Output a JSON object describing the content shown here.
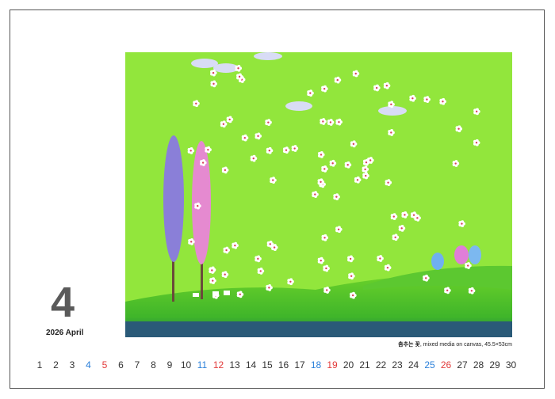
{
  "month": {
    "number": "4",
    "label": "2026 April"
  },
  "artwork": {
    "title": "춤추는 꽃",
    "details": ", mixed media on canvas, 45.5×53cm"
  },
  "days": [
    {
      "d": "1",
      "t": "w"
    },
    {
      "d": "2",
      "t": "w"
    },
    {
      "d": "3",
      "t": "w"
    },
    {
      "d": "4",
      "t": "sat"
    },
    {
      "d": "5",
      "t": "sun"
    },
    {
      "d": "6",
      "t": "w"
    },
    {
      "d": "7",
      "t": "w"
    },
    {
      "d": "8",
      "t": "w"
    },
    {
      "d": "9",
      "t": "w"
    },
    {
      "d": "10",
      "t": "w"
    },
    {
      "d": "11",
      "t": "sat"
    },
    {
      "d": "12",
      "t": "sun"
    },
    {
      "d": "13",
      "t": "w"
    },
    {
      "d": "14",
      "t": "w"
    },
    {
      "d": "15",
      "t": "w"
    },
    {
      "d": "16",
      "t": "w"
    },
    {
      "d": "17",
      "t": "w"
    },
    {
      "d": "18",
      "t": "sat"
    },
    {
      "d": "19",
      "t": "sun"
    },
    {
      "d": "20",
      "t": "w"
    },
    {
      "d": "21",
      "t": "w"
    },
    {
      "d": "22",
      "t": "w"
    },
    {
      "d": "23",
      "t": "w"
    },
    {
      "d": "24",
      "t": "w"
    },
    {
      "d": "25",
      "t": "sat"
    },
    {
      "d": "26",
      "t": "sun"
    },
    {
      "d": "27",
      "t": "w"
    },
    {
      "d": "28",
      "t": "w"
    },
    {
      "d": "29",
      "t": "w"
    },
    {
      "d": "30",
      "t": "w"
    }
  ],
  "colors": {
    "saturday": "#2a7fd9",
    "sunday": "#e23a3a",
    "weekday": "#333333",
    "painting_bg": "#8fe33a"
  }
}
